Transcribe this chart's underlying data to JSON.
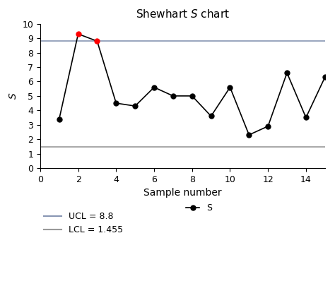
{
  "title": "Shewhart $\\it{S}$ chart",
  "xlabel": "Sample number",
  "ylabel": "$S$",
  "sample_numbers": [
    1,
    2,
    3,
    4,
    5,
    6,
    7,
    8,
    9,
    10,
    11,
    12,
    13,
    14,
    15
  ],
  "s_values": [
    3.4,
    9.3,
    8.8,
    4.5,
    4.3,
    5.6,
    5.0,
    5.0,
    3.6,
    5.6,
    2.3,
    2.9,
    6.6,
    3.5,
    6.3
  ],
  "ucl": 8.8,
  "lcl": 1.455,
  "ucl_label": "UCL = 8.8",
  "lcl_label": "LCL = 1.455",
  "s_label": "S",
  "ylim": [
    0,
    10
  ],
  "xlim": [
    0,
    15
  ],
  "yticks": [
    0,
    1,
    2,
    3,
    4,
    5,
    6,
    7,
    8,
    9,
    10
  ],
  "xticks": [
    0,
    2,
    4,
    6,
    8,
    10,
    12,
    14
  ],
  "line_color": "#000000",
  "ucl_color": "#8896b3",
  "lcl_color": "#999999",
  "normal_marker_color": "#000000",
  "out_of_control_color": "#ff0000",
  "out_of_control_indices": [
    1,
    2
  ],
  "background_color": "#ffffff"
}
